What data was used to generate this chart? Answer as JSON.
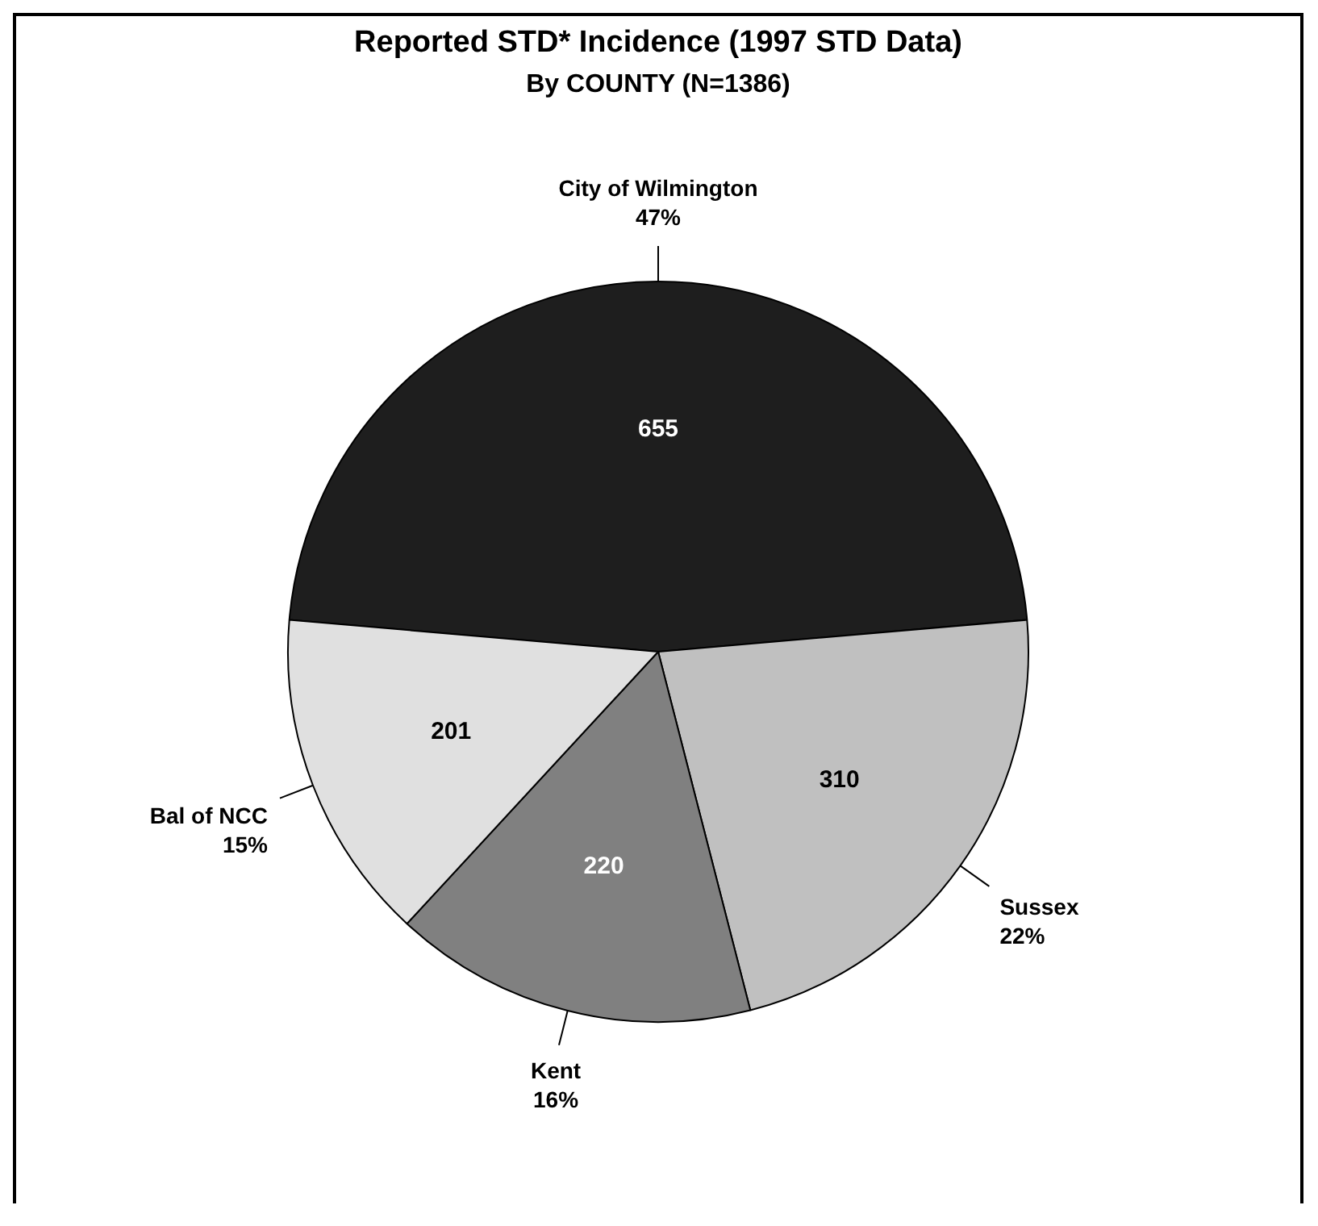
{
  "chart_data": {
    "type": "pie",
    "title": "Reported STD* Incidence (1997 STD Data)",
    "subtitle": "By COUNTY (N=1386)",
    "categories": [
      "City of Wilmington",
      "Sussex",
      "Kent",
      "Bal of NCC"
    ],
    "values": [
      655,
      310,
      220,
      201
    ],
    "colors": [
      "#1e1e1e",
      "#c0c0c0",
      "#808080",
      "#e0e0e0"
    ],
    "data_labels": true,
    "annotations": [
      {
        "text": "47%",
        "x": "City of Wilmington"
      },
      {
        "text": "22%",
        "x": "Sussex"
      },
      {
        "text": "16%",
        "x": "Kent"
      },
      {
        "text": "15%",
        "x": "Bal of NCC"
      }
    ],
    "legend": false
  }
}
